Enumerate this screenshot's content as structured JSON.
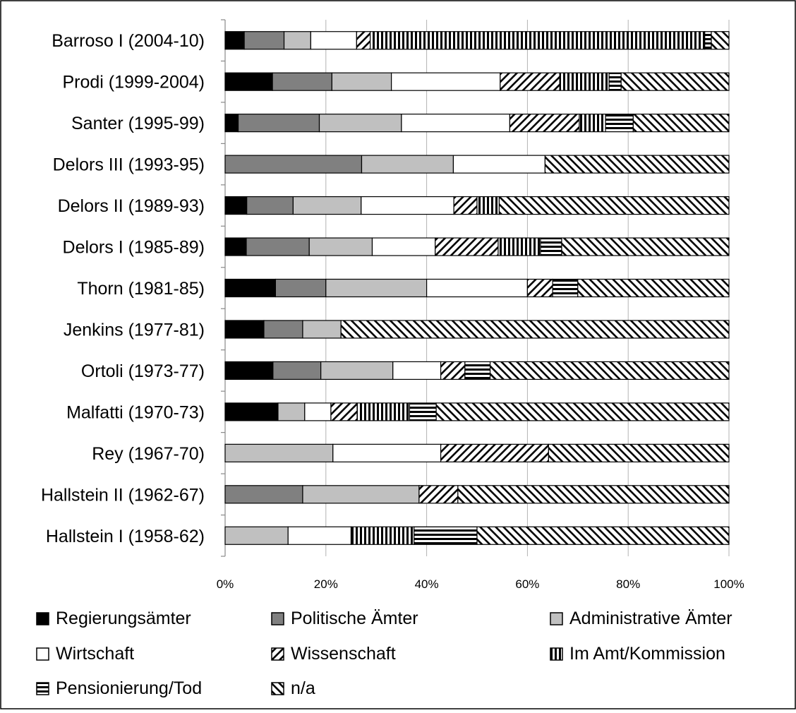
{
  "chart_data": {
    "type": "bar",
    "orientation": "horizontal",
    "stacked": "percent",
    "categories": [
      "Barroso I (2004-10)",
      "Prodi (1999-2004)",
      "Santer (1995-99)",
      "Delors III (1993-95)",
      "Delors II (1989-93)",
      "Delors I (1985-89)",
      "Thorn (1981-85)",
      "Jenkins (1977-81)",
      "Ortoli (1973-77)",
      "Malfatti (1970-73)",
      "Rey (1967-70)",
      "Hallstein II (1962-67)",
      "Hallstein I (1958-62)"
    ],
    "series": [
      {
        "name": "Regierungsämter",
        "pattern": "solid-black",
        "values": [
          3.8,
          9.4,
          2.6,
          0,
          4.3,
          4.2,
          10,
          7.7,
          9.5,
          10.5,
          0,
          0,
          0
        ]
      },
      {
        "name": "Politische Ämter",
        "pattern": "solid-dark-gray",
        "values": [
          7.9,
          11.8,
          16.1,
          27.1,
          9.2,
          12.5,
          10,
          7.7,
          9.5,
          0,
          0,
          15.4,
          0
        ]
      },
      {
        "name": "Administrative Ämter",
        "pattern": "solid-light-gray",
        "values": [
          5.3,
          11.8,
          16.3,
          18.2,
          13.5,
          12.5,
          20,
          7.6,
          14.3,
          5.3,
          21.4,
          23.1,
          12.5
        ]
      },
      {
        "name": "Wirtschaft",
        "pattern": "white",
        "values": [
          9.1,
          21.6,
          21.5,
          18.2,
          18.4,
          12.5,
          20,
          0,
          9.5,
          5.2,
          21.4,
          0,
          12.5
        ]
      },
      {
        "name": "Wissenschaft",
        "pattern": "diagonal-up",
        "values": [
          2.7,
          11.8,
          13.8,
          0,
          4.6,
          12.5,
          5,
          0,
          4.8,
          5.2,
          21.4,
          7.7,
          0
        ]
      },
      {
        "name": "Im Amt/Kommission",
        "pattern": "vertical",
        "values": [
          66.4,
          9.8,
          5.2,
          0,
          4.4,
          8.4,
          0,
          0,
          0,
          10.4,
          0,
          0,
          12.5
        ]
      },
      {
        "name": "Pensionierung/Tod",
        "pattern": "horizontal",
        "values": [
          1.3,
          2.4,
          5.5,
          0,
          0,
          4.2,
          5,
          0,
          5,
          5.3,
          0,
          0,
          12.5
        ]
      },
      {
        "name": "n/a",
        "pattern": "diagonal-down",
        "values": [
          3.5,
          21.4,
          19.0,
          36.5,
          45.6,
          33.2,
          30,
          77.0,
          47.4,
          58.1,
          35.8,
          53.8,
          50
        ]
      }
    ],
    "xlim": [
      0,
      100
    ],
    "xticks": [
      "0%",
      "20%",
      "40%",
      "60%",
      "80%",
      "100%"
    ],
    "grid": "vertical",
    "legend_position": "bottom",
    "colors": {
      "solid-black": "#000000",
      "solid-dark-gray": "#808080",
      "solid-light-gray": "#c0c0c0",
      "white": "#ffffff",
      "stroke": "#000000",
      "gridline": "#b3b3b3",
      "axis": "#888888",
      "frame": "#000000"
    }
  }
}
